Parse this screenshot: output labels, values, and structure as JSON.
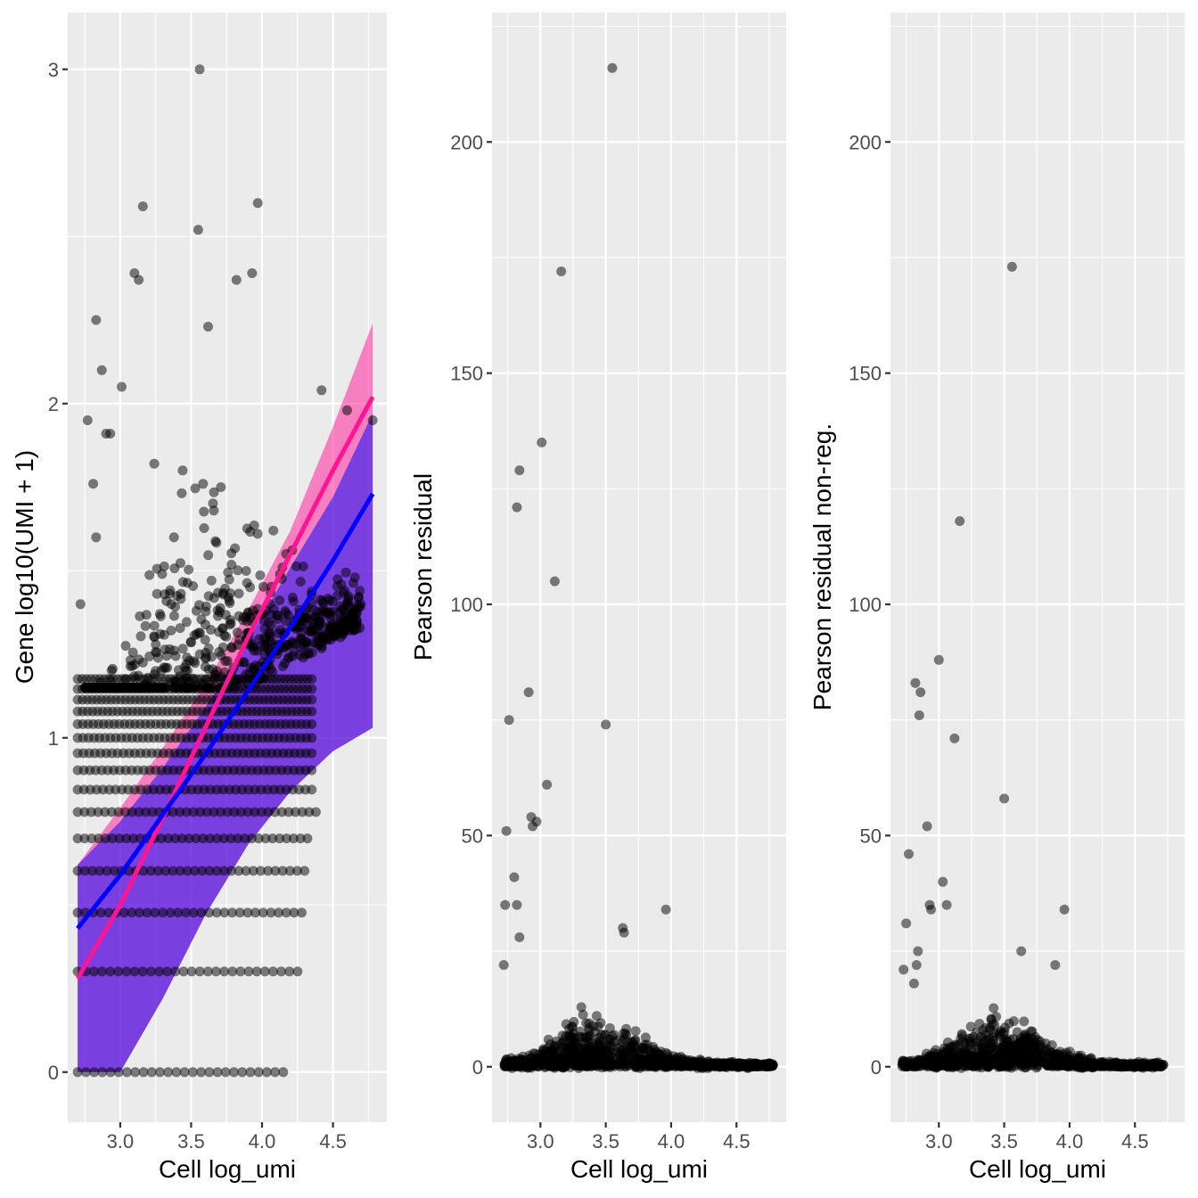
{
  "chart_data": [
    {
      "type": "scatter",
      "title": "",
      "xlabel": "Cell log_umi",
      "ylabel": "Gene log10(UMI + 1)",
      "xlim": [
        2.63,
        4.88
      ],
      "ylim": [
        -0.15,
        3.17
      ],
      "xticks": [
        3.0,
        3.5,
        4.0,
        4.5
      ],
      "xtick_labels": [
        "3.0",
        "3.5",
        "4.0",
        "4.5"
      ],
      "yticks": [
        0,
        1,
        2,
        3
      ],
      "ytick_labels": [
        "0",
        "1",
        "2",
        "3"
      ],
      "grid": true,
      "point_color": "#000000",
      "series": [
        {
          "type": "band",
          "color": "#ff1493",
          "x": [
            2.7,
            3.0,
            3.3,
            3.6,
            3.9,
            4.2,
            4.5,
            4.78
          ],
          "upper": [
            0.62,
            0.79,
            0.97,
            1.16,
            1.38,
            1.62,
            1.93,
            2.24
          ],
          "lower": [
            0.0,
            0.0,
            0.22,
            0.47,
            0.68,
            0.84,
            0.96,
            1.03
          ]
        },
        {
          "type": "band",
          "color": "#0000ff",
          "x": [
            2.7,
            3.0,
            3.3,
            3.6,
            3.9,
            4.2,
            4.5,
            4.78
          ],
          "upper": [
            0.62,
            0.75,
            0.91,
            1.09,
            1.29,
            1.51,
            1.72,
            1.97
          ],
          "lower": [
            0.0,
            0.0,
            0.22,
            0.47,
            0.68,
            0.84,
            0.96,
            1.03
          ]
        },
        {
          "type": "line",
          "color": "#ff1493",
          "x": [
            2.7,
            3.0,
            3.3,
            3.6,
            3.9,
            4.2,
            4.5,
            4.78
          ],
          "y": [
            0.28,
            0.5,
            0.76,
            1.03,
            1.3,
            1.55,
            1.8,
            2.02
          ]
        },
        {
          "type": "line",
          "color": "#0000ff",
          "x": [
            2.7,
            3.0,
            3.3,
            3.6,
            3.9,
            4.2,
            4.5,
            4.78
          ],
          "y": [
            0.43,
            0.59,
            0.77,
            0.95,
            1.14,
            1.33,
            1.53,
            1.73
          ]
        },
        {
          "type": "points",
          "x": [
            3.56,
            3.16,
            3.97,
            3.55,
            3.1,
            3.13,
            3.82,
            3.93,
            2.87,
            2.83,
            3.62,
            2.93,
            3.01,
            4.42,
            2.77,
            2.9,
            2.81,
            2.83,
            2.72,
            3.44,
            3.66,
            4.08,
            4.17,
            4.6,
            4.78,
            3.24,
            3.71
          ],
          "y": [
            3.0,
            2.59,
            2.6,
            2.52,
            2.39,
            2.37,
            2.37,
            2.39,
            2.1,
            2.25,
            2.23,
            1.91,
            2.05,
            2.04,
            1.95,
            1.91,
            1.76,
            1.6,
            1.4,
            1.8,
            1.68,
            1.62,
            1.55,
            1.98,
            1.95,
            1.82,
            1.75
          ]
        }
      ]
    },
    {
      "type": "scatter",
      "title": "",
      "xlabel": "Cell log_umi",
      "ylabel": "Pearson residual",
      "xlim": [
        2.63,
        4.88
      ],
      "ylim": [
        -12,
        228
      ],
      "xticks": [
        3.0,
        3.5,
        4.0,
        4.5
      ],
      "xtick_labels": [
        "3.0",
        "3.5",
        "4.0",
        "4.5"
      ],
      "yticks": [
        0,
        50,
        100,
        150,
        200
      ],
      "ytick_labels": [
        "0",
        "50",
        "100",
        "150",
        "200"
      ],
      "grid": true,
      "point_color": "#000000",
      "series": [
        {
          "type": "points",
          "x": [
            3.55,
            3.16,
            3.01,
            2.84,
            2.82,
            3.11,
            2.91,
            2.76,
            3.5,
            3.05,
            2.93,
            2.97,
            2.94,
            2.74,
            3.96,
            2.8,
            2.82,
            2.84,
            3.63,
            2.72,
            2.73,
            3.64
          ],
          "y": [
            216,
            172,
            135,
            129,
            121,
            105,
            81,
            75,
            74,
            61,
            54,
            53,
            52,
            51,
            34,
            41,
            35,
            28,
            30,
            22,
            35,
            29
          ]
        }
      ]
    },
    {
      "type": "scatter",
      "title": "",
      "xlabel": "Cell log_umi",
      "ylabel": "Pearson residual non-reg.",
      "xlim": [
        2.63,
        4.88
      ],
      "ylim": [
        -12,
        228
      ],
      "xticks": [
        3.0,
        3.5,
        4.0,
        4.5
      ],
      "xtick_labels": [
        "3.0",
        "3.5",
        "4.0",
        "4.5"
      ],
      "yticks": [
        0,
        50,
        100,
        150,
        200
      ],
      "ytick_labels": [
        "0",
        "50",
        "100",
        "150",
        "200"
      ],
      "grid": true,
      "point_color": "#000000",
      "series": [
        {
          "type": "points",
          "x": [
            3.56,
            3.16,
            3.0,
            2.86,
            2.85,
            3.12,
            2.82,
            3.5,
            2.91,
            3.03,
            2.77,
            3.96,
            2.93,
            2.94,
            2.75,
            2.84,
            2.83,
            3.63,
            2.81,
            2.73,
            3.89,
            3.06
          ],
          "y": [
            173,
            118,
            88,
            81,
            76,
            71,
            83,
            58,
            52,
            40,
            46,
            34,
            35,
            34,
            31,
            25,
            22,
            25,
            18,
            21,
            22,
            35
          ]
        }
      ]
    }
  ]
}
